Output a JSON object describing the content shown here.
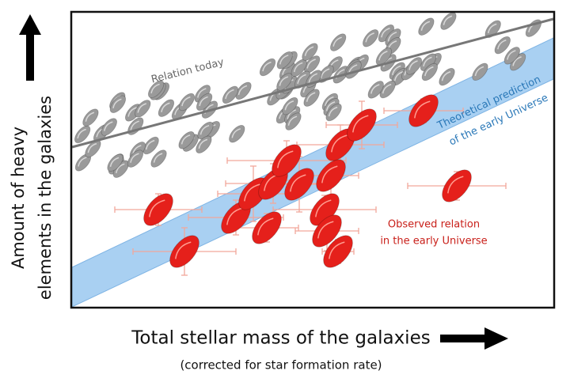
{
  "axes": {
    "y_label": [
      "Amount of heavy",
      "elements in the galaxies"
    ],
    "x_label": "Total stellar mass of the galaxies",
    "x_sublabel": "(corrected for star formation rate)"
  },
  "annotations": {
    "today": "Relation today",
    "theory": [
      "Theoretical prediction",
      "of the early Universe"
    ],
    "observed": [
      "Observed relation",
      "in the early Universe"
    ]
  }
}
